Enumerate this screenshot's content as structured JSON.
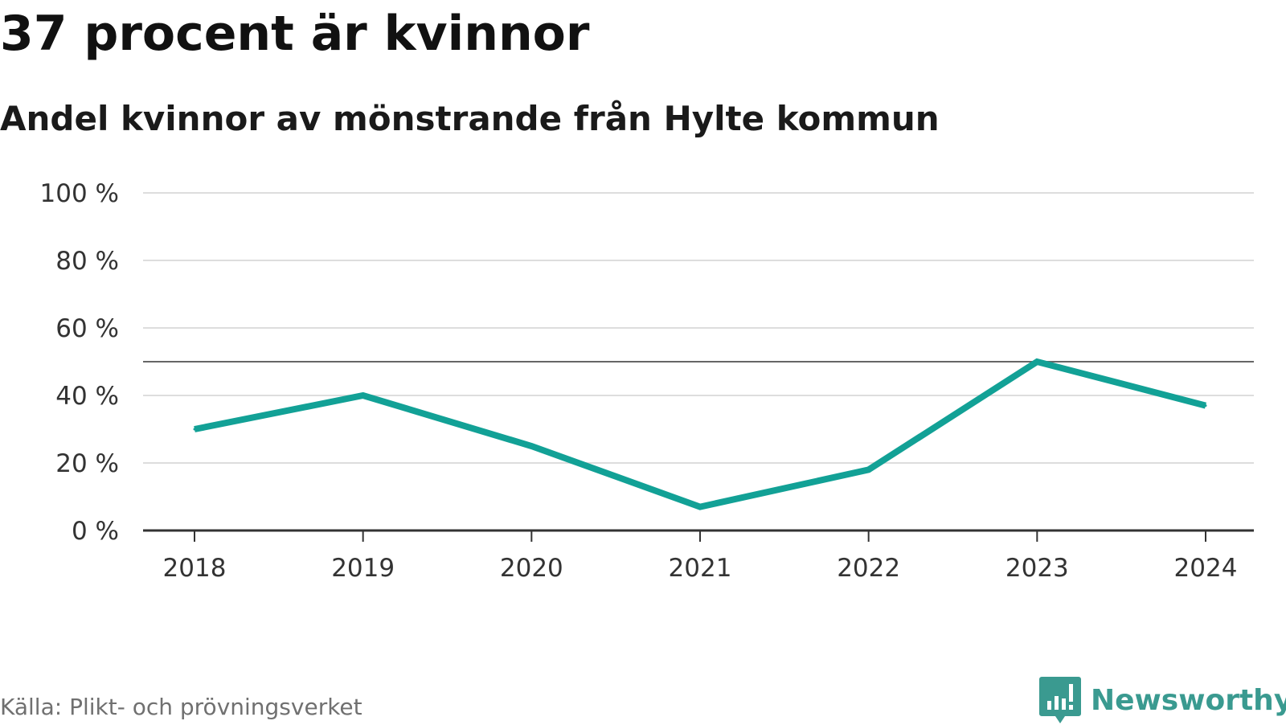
{
  "header": {
    "title": "37 procent är kvinnor",
    "subtitle": "Andel kvinnor av mönstrande från Hylte kommun"
  },
  "footer": {
    "source": "Källa: Plikt- och prövningsverket",
    "brand_name": "Newsworthy",
    "brand_icon": "newsworthy-logo-icon"
  },
  "colors": {
    "line": "#12a196",
    "grid": "#dddddd",
    "reference_line": "#666666",
    "axis": "#333333",
    "brand": "#3a9a90"
  },
  "chart_data": {
    "type": "line",
    "title": "37 procent är kvinnor",
    "subtitle": "Andel kvinnor av mönstrande från Hylte kommun",
    "xlabel": "",
    "ylabel": "",
    "categories": [
      "2018",
      "2019",
      "2020",
      "2021",
      "2022",
      "2023",
      "2024"
    ],
    "series": [
      {
        "name": "Andel kvinnor",
        "values": [
          30,
          40,
          25,
          7,
          18,
          50,
          37
        ]
      }
    ],
    "ylim": [
      0,
      100
    ],
    "yticks": [
      0,
      20,
      40,
      60,
      80,
      100
    ],
    "ytick_labels": [
      "0 %",
      "20 %",
      "40 %",
      "60 %",
      "80 %",
      "100 %"
    ],
    "reference_line": 50,
    "grid": true,
    "legend": "none"
  }
}
